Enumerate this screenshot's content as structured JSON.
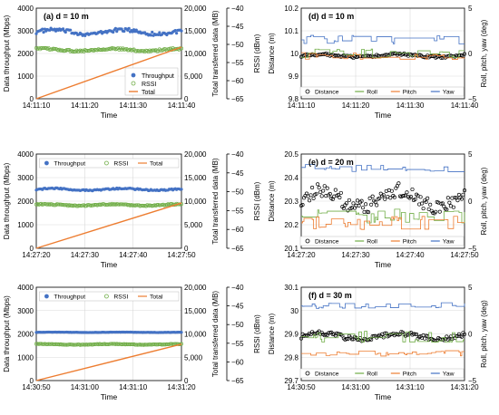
{
  "colors": {
    "throughput": "#4472c4",
    "rssi": "#70ad47",
    "total": "#ed7d31",
    "distance": "#000000",
    "roll": "#70ad47",
    "pitch": "#ed7d31",
    "yaw": "#4472c4",
    "grid": "#d9d9d9",
    "axis": "#000000"
  },
  "chart_data": [
    {
      "id": "a",
      "type": "line",
      "panel_label": "(a) d = 10 m",
      "xlabel": "Time",
      "x_ticks": [
        "14:11:10",
        "14:11:20",
        "14:11:30",
        "14:11:40"
      ],
      "ylabel": "Data throughput (Mbps)",
      "ylim": [
        0,
        4000
      ],
      "y_ticks": [
        "0",
        "1000",
        "2000",
        "3000",
        "4000"
      ],
      "y2label": "Total transferred data (MB)",
      "y2lim": [
        0,
        20000
      ],
      "y2_ticks": [
        "0",
        "5,000",
        "10,000",
        "15,000",
        "20,000"
      ],
      "y3label": "RSSI (dBm)",
      "y3lim": [
        -65,
        -40
      ],
      "y3_ticks": [
        "−65",
        "−60",
        "−55",
        "−50",
        "−45",
        "−40"
      ],
      "legend": [
        "Throughput",
        "RSSI",
        "Total"
      ],
      "legend_position": "bottom-right, vertical",
      "series": [
        {
          "name": "Throughput",
          "axis": "y",
          "mean": 2950,
          "noise": 160,
          "style": "dots"
        },
        {
          "name": "RSSI",
          "axis": "y3",
          "mean": -51.5,
          "noise": 0.5,
          "style": "circles"
        },
        {
          "name": "Total",
          "axis": "y2",
          "start": 0,
          "end": 11400,
          "style": "line"
        }
      ]
    },
    {
      "id": "b",
      "type": "line",
      "panel_label": "(b) d = 20 m",
      "xlabel": "Time",
      "x_ticks": [
        "14:27:20",
        "14:27:30",
        "14:27:40",
        "14:27:50"
      ],
      "ylabel": "Data throughput (Mbps)",
      "ylim": [
        0,
        4000
      ],
      "y_ticks": [
        "0",
        "1000",
        "2000",
        "3000",
        "4000"
      ],
      "y2label": "Total transferred data (MB)",
      "y2lim": [
        0,
        20000
      ],
      "y2_ticks": [
        "0",
        "5,000",
        "10,000",
        "15,000",
        "20,000"
      ],
      "y3label": "RSSI (dBm)",
      "y3lim": [
        -65,
        -40
      ],
      "y3_ticks": [
        "−65",
        "−60",
        "−55",
        "−50",
        "−45",
        "−40"
      ],
      "legend": [
        "Throughput",
        "RSSI",
        "Total"
      ],
      "legend_position": "top, horizontal",
      "series": [
        {
          "name": "Throughput",
          "axis": "y",
          "mean": 2500,
          "noise": 60,
          "style": "dots"
        },
        {
          "name": "RSSI",
          "axis": "y3",
          "mean": -53.5,
          "noise": 0.3,
          "style": "circles"
        },
        {
          "name": "Total",
          "axis": "y2",
          "start": 0,
          "end": 9600,
          "style": "line"
        }
      ]
    },
    {
      "id": "c",
      "type": "line",
      "panel_label": "(c) d = 30 m",
      "xlabel": "Time",
      "x_ticks": [
        "14:30:50",
        "14:31:00",
        "14:31:10",
        "14:31:20"
      ],
      "ylabel": "Data throughput (Mbps)",
      "ylim": [
        0,
        4000
      ],
      "y_ticks": [
        "0",
        "1000",
        "2000",
        "3000",
        "4000"
      ],
      "y2label": "Total transferred data (MB)",
      "y2lim": [
        0,
        20000
      ],
      "y2_ticks": [
        "0",
        "5,000",
        "10,000",
        "15,000",
        "20,000"
      ],
      "y3label": "RSSI (dBm)",
      "y3lim": [
        -65,
        -40
      ],
      "y3_ticks": [
        "−65",
        "−60",
        "−55",
        "−50",
        "−45",
        "−40"
      ],
      "legend": [
        "Throughput",
        "RSSI",
        "Total"
      ],
      "legend_position": "top, horizontal",
      "series": [
        {
          "name": "Throughput",
          "axis": "y",
          "mean": 2070,
          "noise": 10,
          "style": "dots"
        },
        {
          "name": "RSSI",
          "axis": "y3",
          "mean": -55.3,
          "noise": 0.15,
          "style": "circles"
        },
        {
          "name": "Total",
          "axis": "y2",
          "start": 0,
          "end": 7800,
          "style": "line"
        }
      ]
    },
    {
      "id": "d",
      "type": "line",
      "panel_label": "(d) d = 10 m",
      "xlabel": "Time",
      "x_ticks": [
        "14:11:10",
        "14:11:20",
        "14:11:30",
        "14:11:40"
      ],
      "ylabel": "Distance (m)",
      "ylim": [
        9.8,
        10.2
      ],
      "y_ticks": [
        "9.8",
        "9.9",
        "10",
        "10.1",
        "10.2"
      ],
      "y2label": "Roll, pitch, yaw (deg)",
      "y2lim": [
        -5,
        5
      ],
      "y2_ticks": [
        "−5",
        "0",
        "5"
      ],
      "legend": [
        "Distance",
        "Roll",
        "Pitch",
        "Yaw"
      ],
      "legend_position": "bottom, horizontal",
      "series": [
        {
          "name": "Distance",
          "axis": "y",
          "mean": 9.99,
          "noise": 0.01,
          "style": "circles"
        },
        {
          "name": "Roll",
          "axis": "y2",
          "mean": 0.0,
          "noise": 0.5,
          "style": "step"
        },
        {
          "name": "Pitch",
          "axis": "y2",
          "mean": -0.3,
          "noise": 0.4,
          "style": "step"
        },
        {
          "name": "Yaw",
          "axis": "y2",
          "mean": 1.5,
          "noise": 0.5,
          "style": "step"
        }
      ]
    },
    {
      "id": "e",
      "type": "line",
      "panel_label": "(e) d = 20 m",
      "xlabel": "Time",
      "x_ticks": [
        "14:27:20",
        "14:27:30",
        "14:27:40",
        "14:27:50"
      ],
      "ylabel": "Distance (m)",
      "ylim": [
        20.1,
        20.5
      ],
      "y_ticks": [
        "20.1",
        "20.2",
        "20.3",
        "20.4",
        "20.5"
      ],
      "y2label": "Roll, pitch, yaw (deg)",
      "y2lim": [
        -5,
        5
      ],
      "y2_ticks": [
        "−5",
        "0",
        "5"
      ],
      "legend": [
        "Distance",
        "Roll",
        "Pitch",
        "Yaw"
      ],
      "legend_position": "bottom, horizontal",
      "series": [
        {
          "name": "Distance",
          "axis": "y",
          "mean": 20.31,
          "noise": 0.06,
          "style": "circles"
        },
        {
          "name": "Roll",
          "axis": "y2",
          "mean": -1.6,
          "noise": 0.8,
          "style": "step"
        },
        {
          "name": "Pitch",
          "axis": "y2",
          "mean": -2.3,
          "noise": 0.7,
          "style": "step"
        },
        {
          "name": "Yaw",
          "axis": "y2",
          "mean": 3.5,
          "noise": 0.4,
          "style": "step"
        }
      ]
    },
    {
      "id": "f",
      "type": "line",
      "panel_label": "(f) d = 30 m",
      "xlabel": "Time",
      "x_ticks": [
        "14:30:50",
        "14:31:00",
        "14:31:10",
        "14:31:20"
      ],
      "ylabel": "Distance (m)",
      "ylim": [
        29.7,
        30.1
      ],
      "y_ticks": [
        "29.7",
        "29.8",
        "29.9",
        "30",
        "30.1"
      ],
      "y2label": "Roll, pitch, yaw (deg)",
      "y2lim": [
        -5,
        5
      ],
      "y2_ticks": [
        "−5",
        "0",
        "5"
      ],
      "legend": [
        "Distance",
        "Roll",
        "Pitch",
        "Yaw"
      ],
      "legend_position": "bottom, horizontal",
      "series": [
        {
          "name": "Distance",
          "axis": "y",
          "mean": 29.89,
          "noise": 0.02,
          "style": "circles"
        },
        {
          "name": "Roll",
          "axis": "y2",
          "mean": -0.3,
          "noise": 0.6,
          "style": "step"
        },
        {
          "name": "Pitch",
          "axis": "y2",
          "mean": -2.1,
          "noise": 0.3,
          "style": "step"
        },
        {
          "name": "Yaw",
          "axis": "y2",
          "mean": 3.0,
          "noise": 0.4,
          "style": "step"
        }
      ]
    }
  ]
}
